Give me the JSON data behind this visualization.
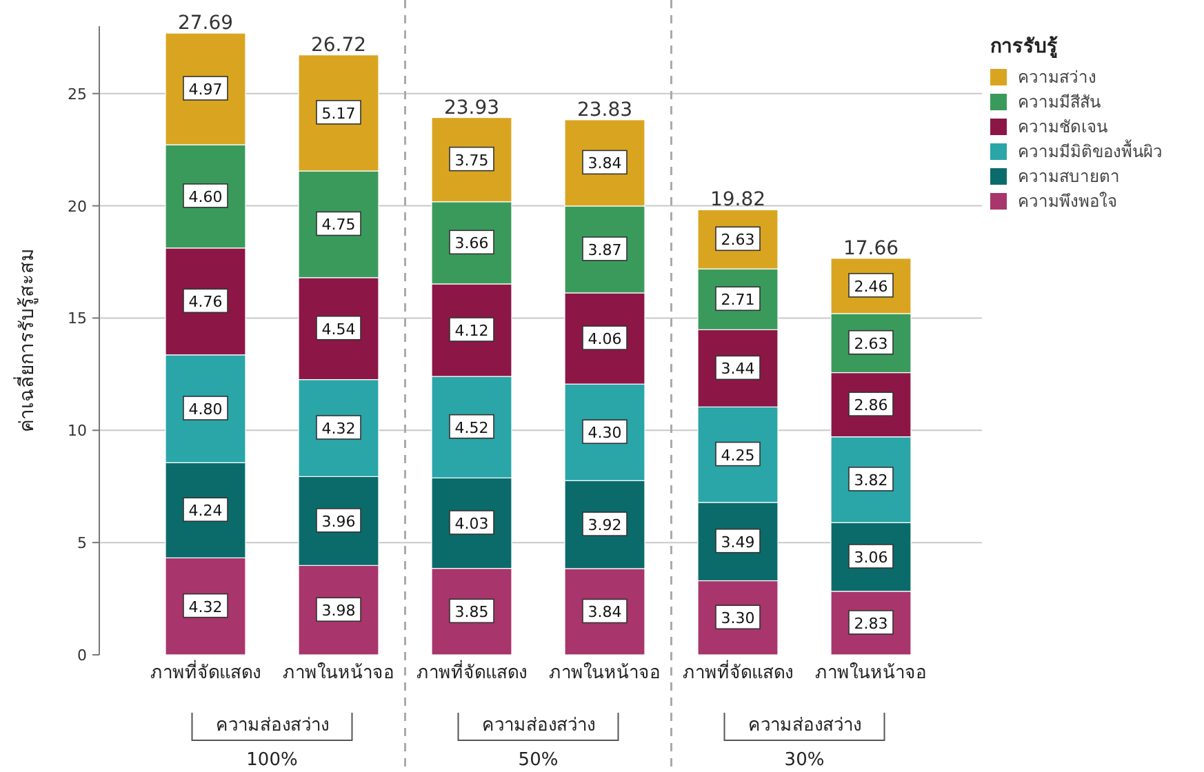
{
  "chart_data": {
    "type": "bar",
    "stacked": true,
    "ylabel": "ค่าเฉลี่ยการรับรู้สะสม",
    "legend_title": "การรับรู้",
    "legend": "right",
    "grid": "y",
    "categories": [
      "ภาพที่จัดแสดง",
      "ภาพในหน้าจอ",
      "ภาพที่จัดแสดง",
      "ภาพในหน้าจอ",
      "ภาพที่จัดแสดง",
      "ภาพในหน้าจอ"
    ],
    "ylim": [
      0,
      28
    ],
    "yticks": [
      0,
      5,
      10,
      15,
      20,
      25
    ],
    "series": [
      {
        "name": "ความพึงพอใจ",
        "color": "#a8356b",
        "values": [
          4.32,
          3.98,
          3.85,
          3.84,
          3.3,
          2.83
        ],
        "value_labels": [
          "4.32",
          "3.98",
          "3.85",
          "3.84",
          "3.30",
          "2.83"
        ]
      },
      {
        "name": "ความสบายตา",
        "color": "#0b6b6b",
        "values": [
          4.24,
          3.96,
          4.03,
          3.92,
          3.49,
          3.06
        ],
        "value_labels": [
          "4.24",
          "3.96",
          "4.03",
          "3.92",
          "3.49",
          "3.06"
        ]
      },
      {
        "name": "ความมีมิติของพื้นผิว",
        "color": "#2aa5a8",
        "values": [
          4.8,
          4.32,
          4.52,
          4.3,
          4.25,
          3.82
        ],
        "value_labels": [
          "4.80",
          "4.32",
          "4.52",
          "4.30",
          "4.25",
          "3.82"
        ]
      },
      {
        "name": "ความชัดเจน",
        "color": "#8c1746",
        "values": [
          4.76,
          4.54,
          4.12,
          4.06,
          3.44,
          2.86
        ],
        "value_labels": [
          "4.76",
          "4.54",
          "4.12",
          "4.06",
          "3.44",
          "2.86"
        ]
      },
      {
        "name": "ความมีสีสัน",
        "color": "#3a9a5c",
        "values": [
          4.6,
          4.75,
          3.66,
          3.87,
          2.71,
          2.63
        ],
        "value_labels": [
          "4.60",
          "4.75",
          "3.66",
          "3.87",
          "2.71",
          "2.63"
        ]
      },
      {
        "name": "ความสว่าง",
        "color": "#d9a520",
        "values": [
          4.97,
          5.17,
          3.75,
          3.84,
          2.63,
          2.46
        ],
        "value_labels": [
          "4.97",
          "5.17",
          "3.75",
          "3.84",
          "2.63",
          "2.46"
        ]
      }
    ],
    "totals": [
      "27.69",
      "26.72",
      "23.93",
      "23.83",
      "19.82",
      "17.66"
    ],
    "annotations": [
      "ความส่องสว่าง",
      "100%",
      "ความส่องสว่าง",
      "50%",
      "ความส่องสว่าง",
      "30%"
    ]
  }
}
